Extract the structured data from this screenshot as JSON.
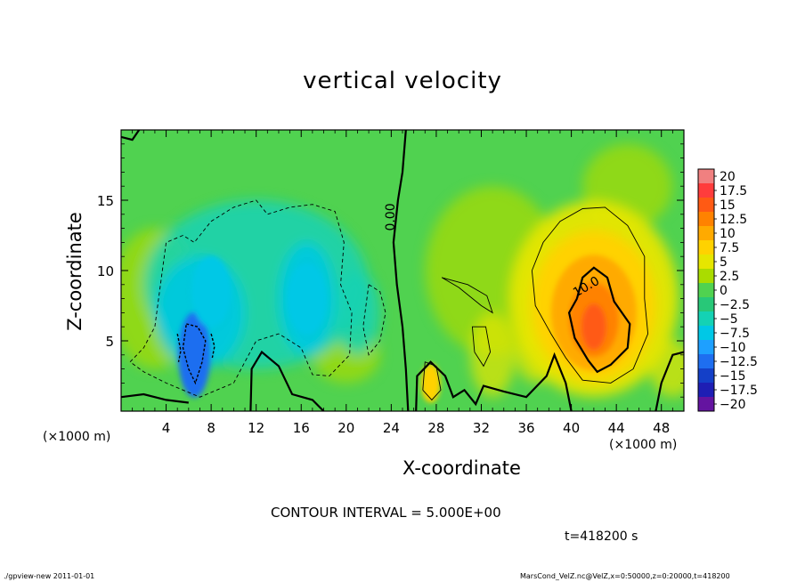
{
  "chart_data": {
    "type": "heatmap",
    "title": "vertical velocity",
    "xlabel": "X-coordinate",
    "ylabel": "Z-coordinate",
    "x_unit_label": "(×1000 m)",
    "xlim": [
      0,
      50
    ],
    "ylim": [
      0,
      20
    ],
    "x_ticks": [
      4,
      8,
      12,
      16,
      20,
      24,
      28,
      32,
      36,
      40,
      44,
      48
    ],
    "y_ticks": [
      5,
      10,
      15
    ],
    "contour_interval_text": "CONTOUR INTERVAL = 5.000E+00",
    "contour_labels": [
      {
        "text": "0.00",
        "x": 24.3,
        "z": 13.8
      },
      {
        "text": "10.0",
        "x": 41.5,
        "z": 8.6
      }
    ],
    "time_text": "t=418200 s",
    "colorbar": {
      "labels": [
        "20",
        "17.5",
        "15",
        "12.5",
        "10",
        "7.5",
        "5",
        "2.5",
        "0",
        "−2.5",
        "−5",
        "−7.5",
        "−10",
        "−12.5",
        "−15",
        "−17.5",
        "−20"
      ],
      "colors": [
        "#f08080",
        "#ff3c3c",
        "#ff5a14",
        "#ff8200",
        "#ffaa00",
        "#ffd200",
        "#e6e600",
        "#aadc00",
        "#50d250",
        "#28c878",
        "#14d2b4",
        "#00c8e6",
        "#1ea0ff",
        "#1e6ef0",
        "#1440c8",
        "#1e1eb4",
        "#6414a0"
      ]
    },
    "fields": {
      "positive_cores": [
        {
          "x": 42.0,
          "z": 6.5,
          "peak": 15
        },
        {
          "x": 27.5,
          "z": 2.0,
          "peak": 7.5
        }
      ],
      "negative_cores": [
        {
          "x": 6.5,
          "z": 4.0,
          "peak": -12.5
        },
        {
          "x": 8.0,
          "z": 8.5,
          "peak": -7.5
        },
        {
          "x": 16.5,
          "z": 8.0,
          "peak": -7.5
        }
      ]
    },
    "footer_left": "./gpview-new  2011-01-01",
    "footer_right": "MarsCond_VelZ.nc@VelZ,x=0:50000,z=0:20000,t=418200"
  }
}
